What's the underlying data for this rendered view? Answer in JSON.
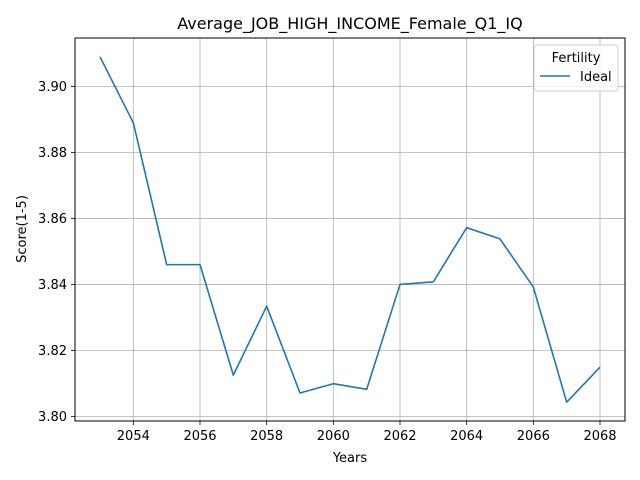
{
  "chart_data": {
    "type": "line",
    "title": "Average_JOB_HIGH_INCOME_Female_Q1_IQ",
    "xlabel": "Years",
    "ylabel": "Score(1-5)",
    "xlim": [
      2052.25,
      2068.75
    ],
    "ylim": [
      3.7986,
      3.9147
    ],
    "xticks": [
      "2054",
      "2056",
      "2058",
      "2060",
      "2062",
      "2064",
      "2066",
      "2068"
    ],
    "yticks": [
      "3.80",
      "3.82",
      "3.84",
      "3.86",
      "3.88",
      "3.90"
    ],
    "grid": true,
    "legend": {
      "title": "Fertility",
      "placement": "top-right"
    },
    "series": [
      {
        "name": "Ideal",
        "color": "#1f77b4",
        "x": [
          2053,
          2054,
          2055,
          2056,
          2057,
          2058,
          2059,
          2060,
          2061,
          2062,
          2063,
          2064,
          2065,
          2066,
          2067,
          2068
        ],
        "y": [
          3.909,
          3.889,
          3.846,
          3.846,
          3.8125,
          3.8334,
          3.8071,
          3.8099,
          3.8082,
          3.84,
          3.8408,
          3.8572,
          3.8538,
          3.8392,
          3.8043,
          3.8149
        ]
      }
    ]
  }
}
